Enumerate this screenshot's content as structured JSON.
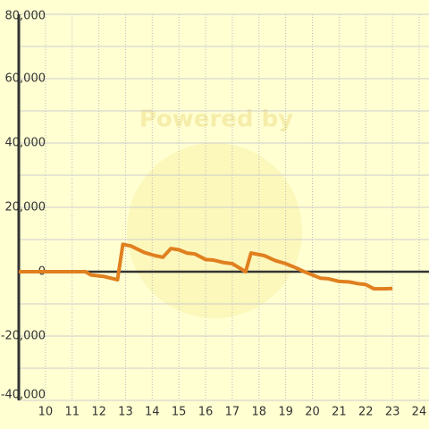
{
  "chart_data": {
    "type": "line",
    "watermark": "Powered by",
    "x": [
      9,
      11.5,
      11.7,
      12.2,
      12.7,
      12.9,
      13.2,
      13.7,
      14.1,
      14.4,
      14.7,
      15,
      15.3,
      15.6,
      16,
      16.3,
      16.7,
      17,
      17.3,
      17.5,
      17.7,
      18.2,
      18.6,
      19,
      19.3,
      19.7,
      20,
      20.3,
      20.6,
      21,
      21.4,
      21.7,
      22,
      22.3,
      22.7,
      23
    ],
    "series": [
      {
        "color": "#e07f1f",
        "values": [
          0,
          0,
          -1000,
          -1500,
          -2500,
          8500,
          8000,
          6000,
          5000,
          4500,
          7200,
          6800,
          5800,
          5500,
          3800,
          3600,
          2800,
          2500,
          1000,
          0,
          5800,
          5000,
          3500,
          2500,
          1500,
          0,
          -1000,
          -2000,
          -2200,
          -3000,
          -3200,
          -3700,
          -4000,
          -5300,
          -5300,
          -5200
        ]
      }
    ],
    "xlim": [
      9,
      24.37
    ],
    "xticks": [
      10,
      11,
      12,
      13,
      14,
      15,
      16,
      17,
      18,
      19,
      20,
      21,
      22,
      23,
      24
    ],
    "ylim": [
      -40000,
      80000
    ],
    "yticks": [
      {
        "value": -40000,
        "label": "-40,000"
      },
      {
        "value": -20000,
        "label": "-20,000"
      },
      0,
      {
        "value": 20000,
        "label": "20,000"
      },
      {
        "value": 40000,
        "label": "40,000"
      },
      {
        "value": 60000,
        "label": "60,000"
      },
      {
        "value": 80000,
        "label": "80,000"
      }
    ],
    "yminorticks": [
      -30000,
      -10000,
      10000,
      30000,
      50000,
      70000
    ],
    "grid": true
  }
}
